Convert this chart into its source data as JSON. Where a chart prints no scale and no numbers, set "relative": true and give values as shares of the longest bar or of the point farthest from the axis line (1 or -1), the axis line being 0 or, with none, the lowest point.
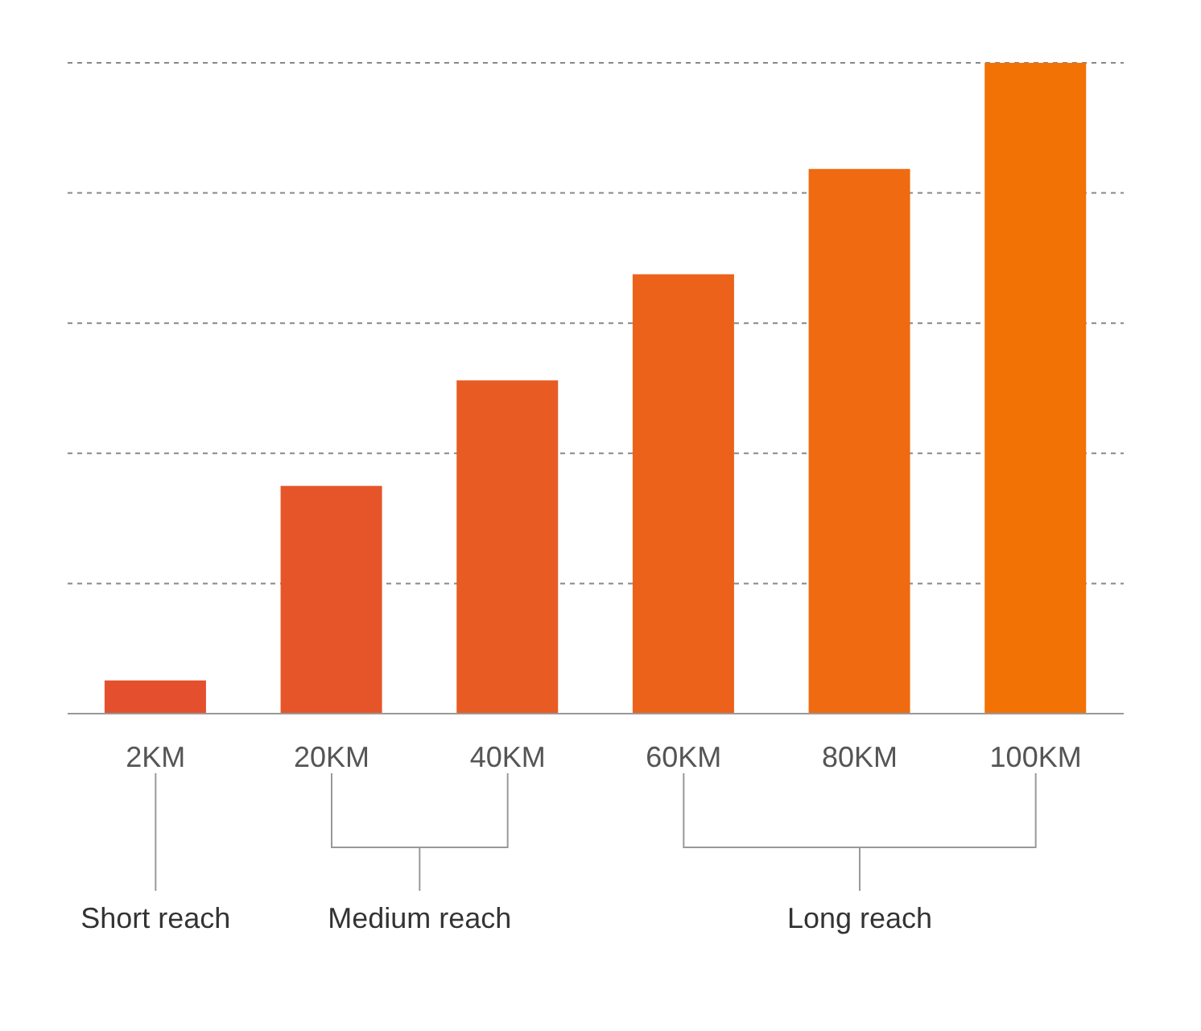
{
  "chart_data": {
    "type": "bar",
    "relative": true,
    "categories": [
      "2KM",
      "20KM",
      "40KM",
      "60KM",
      "80KM",
      "100KM"
    ],
    "values": [
      0.051,
      0.35,
      0.512,
      0.675,
      0.837,
      1
    ],
    "colors": [
      "#e4502e",
      "#e65529",
      "#e85b23",
      "#ec621a",
      "#ef6a10",
      "#f27206"
    ],
    "grid": "y",
    "annotations": [
      "Short reach",
      "Medium reach",
      "Long reach"
    ]
  }
}
